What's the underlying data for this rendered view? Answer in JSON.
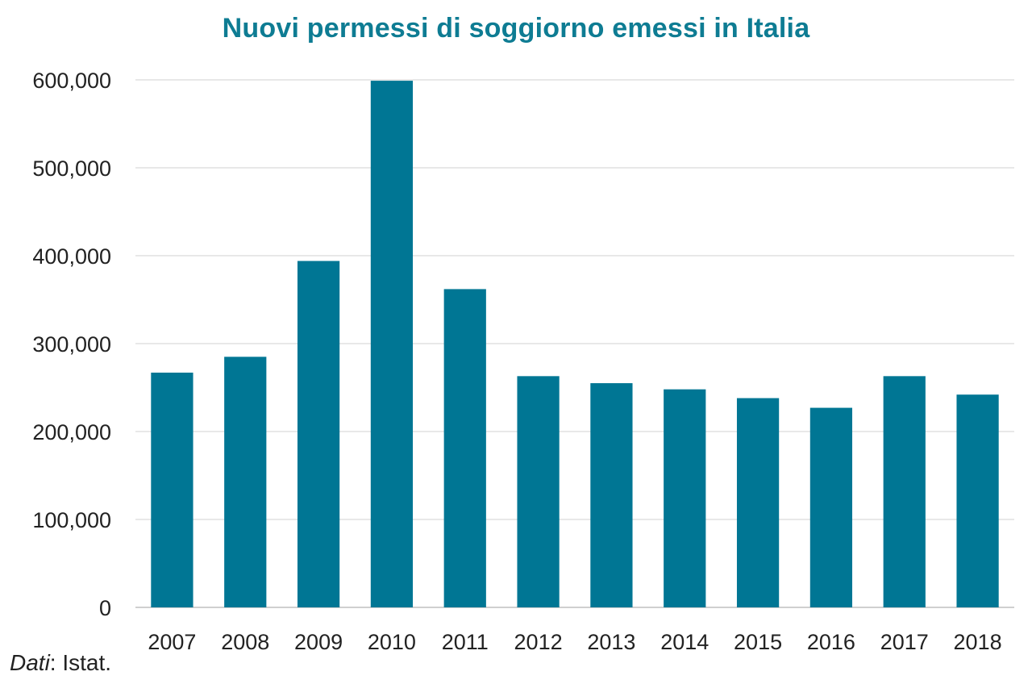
{
  "title": "Nuovi permessi di soggiorno emessi in Italia",
  "source": {
    "label": "Dati",
    "separator": ":",
    "text": " Istat."
  },
  "colors": {
    "bar": "#007694",
    "title": "#0e7c93",
    "grid": "#d9d9d9",
    "text": "#222222"
  },
  "chart_data": {
    "type": "bar",
    "title": "Nuovi permessi di soggiorno emessi in Italia",
    "xlabel": "",
    "ylabel": "",
    "categories": [
      "2007",
      "2008",
      "2009",
      "2010",
      "2011",
      "2012",
      "2013",
      "2014",
      "2015",
      "2016",
      "2017",
      "2018"
    ],
    "values": [
      267000,
      285000,
      394000,
      599000,
      362000,
      263000,
      255000,
      248000,
      238000,
      227000,
      263000,
      242000
    ],
    "ylim": [
      0,
      600000
    ],
    "yticks": [
      0,
      100000,
      200000,
      300000,
      400000,
      500000,
      600000
    ],
    "ytick_labels": [
      "0",
      "100,000",
      "200,000",
      "300,000",
      "400,000",
      "500,000",
      "600,000"
    ],
    "grid": true,
    "legend": "none"
  }
}
